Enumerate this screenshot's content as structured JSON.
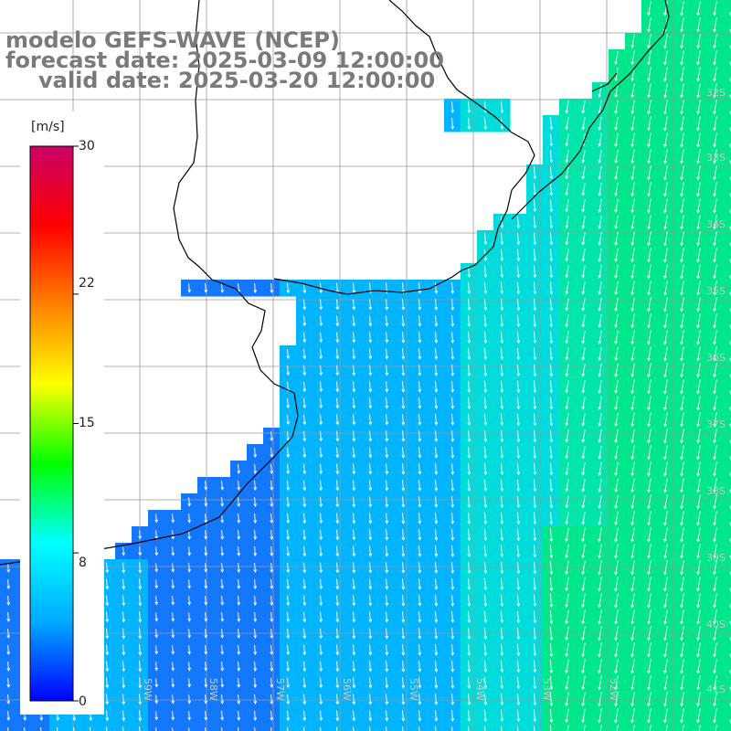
{
  "title": {
    "line1": "modelo GEFS-WAVE (NCEP)",
    "line2": "forecast date: 2025-03-09 12:00:00",
    "line3": "valid date: 2025-03-20 12:00:00"
  },
  "colorbar": {
    "unit": "[m/s]",
    "ticks": [
      "30",
      "22",
      "15",
      "8",
      "0"
    ],
    "tick_values": [
      30,
      22,
      15,
      8,
      0
    ],
    "range": [
      0,
      30
    ],
    "colors": [
      "#0000ff",
      "#00aaff",
      "#00ffff",
      "#00ff00",
      "#ffff00",
      "#ff8000",
      "#ff0000",
      "#cc0066"
    ]
  },
  "grid": {
    "lat_labels": [
      "32S",
      "33S",
      "34S",
      "35S",
      "36S",
      "37S",
      "38S",
      "39S",
      "40S",
      "41S"
    ],
    "lon_labels": [
      "59W",
      "58W",
      "57W",
      "56W",
      "55W",
      "54W",
      "53W",
      "52W"
    ]
  },
  "field": {
    "variable": "wind speed",
    "ocean_low_color": "#1e5bf0",
    "ocean_mid_color": "#00b4ff",
    "ocean_high_color": "#00e68a",
    "land_color": "#ffffff",
    "coast_color": "#000000",
    "arrow_color": "#ffffff"
  }
}
